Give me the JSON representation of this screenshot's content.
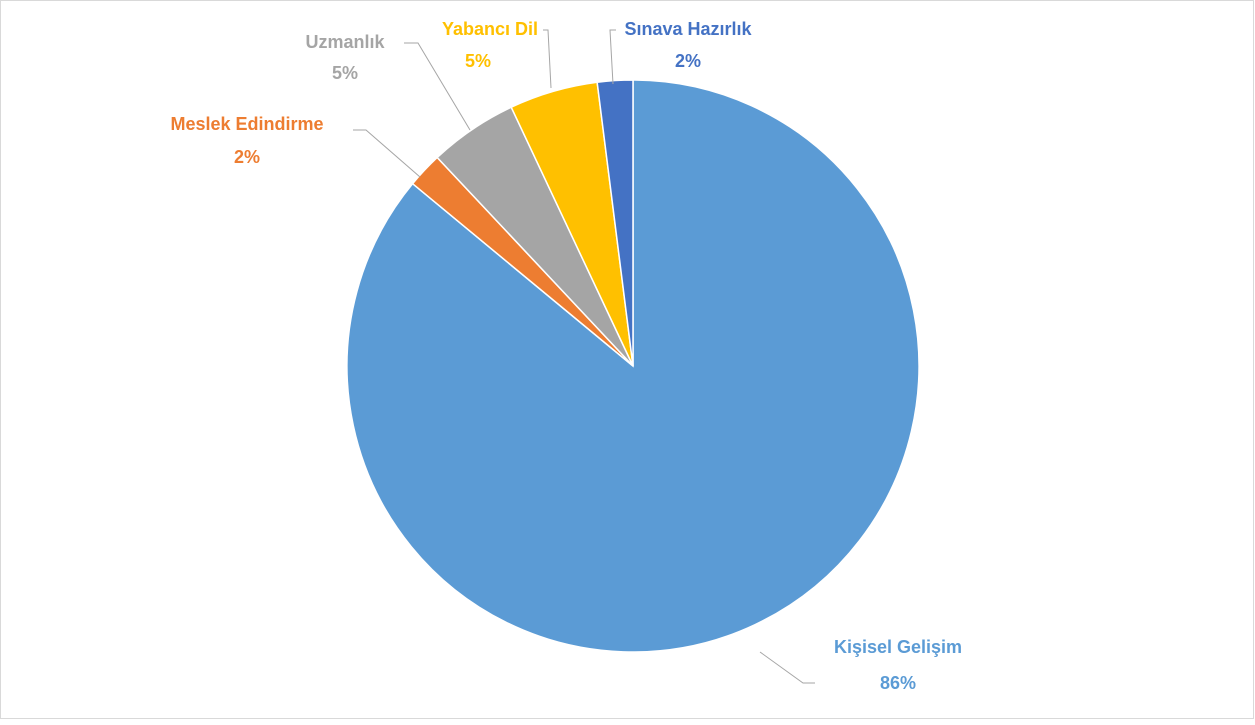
{
  "chart_data": {
    "type": "pie",
    "categories": [
      "Kişisel Gelişim",
      "Meslek Edindirme",
      "Uzmanlık",
      "Yabancı Dil",
      "Sınava Hazırlık"
    ],
    "values": [
      86,
      2,
      5,
      5,
      2
    ],
    "value_labels": [
      "86%",
      "2%",
      "5%",
      "5%",
      "2%"
    ],
    "colors": [
      "#5b9bd5",
      "#ed7d31",
      "#a5a5a5",
      "#ffc000",
      "#4472c4"
    ]
  }
}
